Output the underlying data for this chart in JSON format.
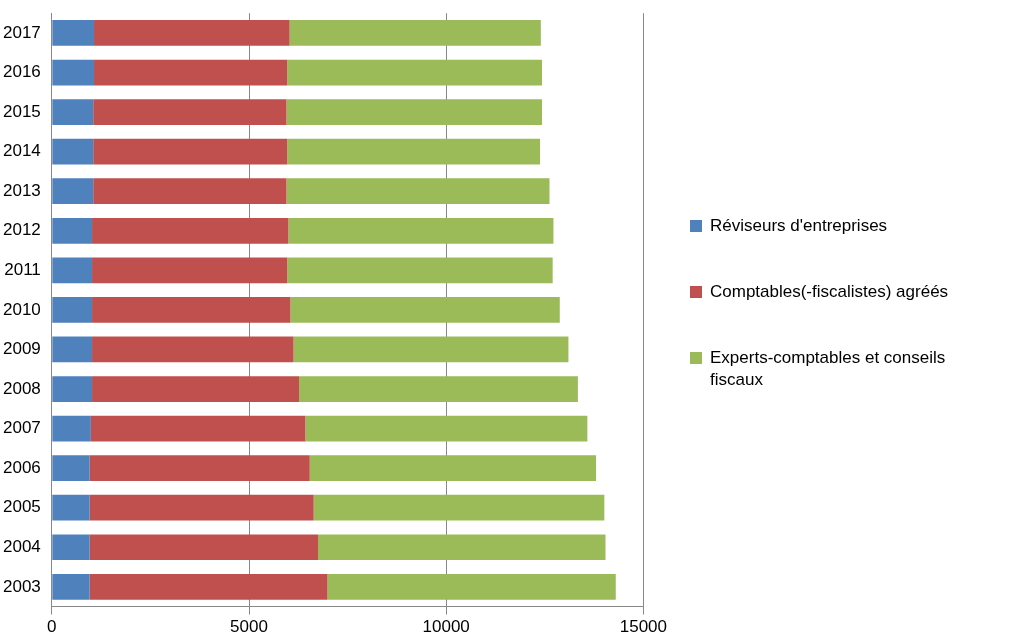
{
  "chart_data": {
    "type": "bar",
    "orientation": "horizontal",
    "stacked": true,
    "categories": [
      "2017",
      "2016",
      "2015",
      "2014",
      "2013",
      "2012",
      "2011",
      "2010",
      "2009",
      "2008",
      "2007",
      "2006",
      "2005",
      "2004",
      "2003"
    ],
    "series": [
      {
        "name": "Réviseurs d'entreprises",
        "color": "#4f81bd",
        "values": [
          1070,
          1070,
          1050,
          1050,
          1050,
          1020,
          1020,
          1020,
          1020,
          1020,
          990,
          960,
          960,
          960,
          960
        ]
      },
      {
        "name": "Comptables(-fiscalistes) agréés",
        "color": "#c0504d",
        "values": [
          4960,
          4900,
          4900,
          4920,
          4900,
          4980,
          4950,
          5030,
          5110,
          5250,
          5440,
          5580,
          5680,
          5790,
          6030
        ]
      },
      {
        "name": "Experts-comptables et conseils fiscaux",
        "color": "#9bbb59",
        "values": [
          6370,
          6460,
          6480,
          6410,
          6670,
          6720,
          6730,
          6830,
          6970,
          7070,
          7150,
          7260,
          7370,
          7290,
          7310
        ]
      }
    ],
    "xlim": [
      0,
      15000
    ],
    "xticks": [
      0,
      5000,
      10000,
      15000
    ],
    "grid": "x",
    "legend": "right"
  }
}
